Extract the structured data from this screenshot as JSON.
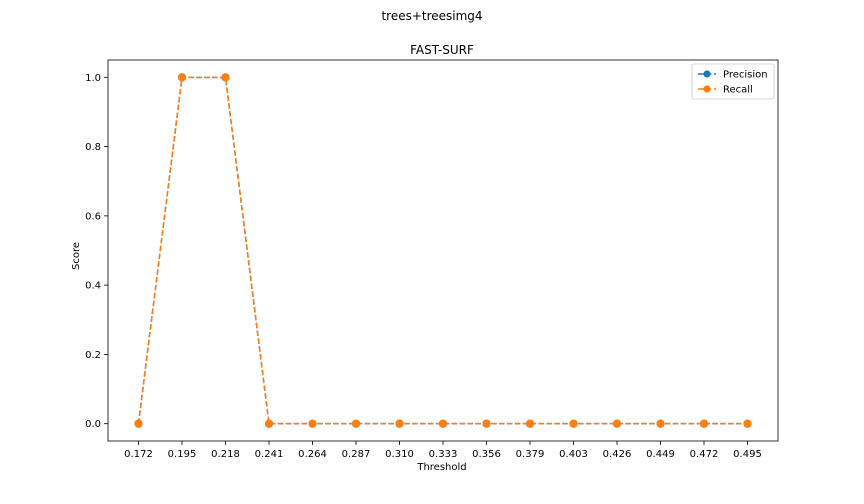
{
  "figure": {
    "suptitle": "trees+treesimg4"
  },
  "chart_data": {
    "type": "line",
    "title": "FAST-SURF",
    "xlabel": "Threshold",
    "ylabel": "Score",
    "x": [
      0.172,
      0.195,
      0.218,
      0.241,
      0.264,
      0.287,
      0.31,
      0.333,
      0.356,
      0.379,
      0.403,
      0.426,
      0.449,
      0.472,
      0.495
    ],
    "x_tick_labels": [
      "0.172",
      "0.195",
      "0.218",
      "0.241",
      "0.264",
      "0.287",
      "0.310",
      "0.333",
      "0.356",
      "0.379",
      "0.403",
      "0.426",
      "0.449",
      "0.472",
      "0.495"
    ],
    "y_ticks": [
      0.0,
      0.2,
      0.4,
      0.6,
      0.8,
      1.0
    ],
    "y_tick_labels": [
      "0.0",
      "0.2",
      "0.4",
      "0.6",
      "0.8",
      "1.0"
    ],
    "ylim": [
      -0.05,
      1.05
    ],
    "grid": false,
    "legend_position": "top-right",
    "series": [
      {
        "name": "Precision",
        "color": "#1f77b4",
        "linestyle": "dashed",
        "marker": "circle",
        "values": [
          0,
          1,
          1,
          0,
          0,
          0,
          0,
          0,
          0,
          0,
          0,
          0,
          0,
          0,
          0
        ]
      },
      {
        "name": "Recall",
        "color": "#ff7f0e",
        "linestyle": "dashed",
        "marker": "circle",
        "values": [
          0,
          1,
          1,
          0,
          0,
          0,
          0,
          0,
          0,
          0,
          0,
          0,
          0,
          0,
          0
        ]
      }
    ]
  }
}
